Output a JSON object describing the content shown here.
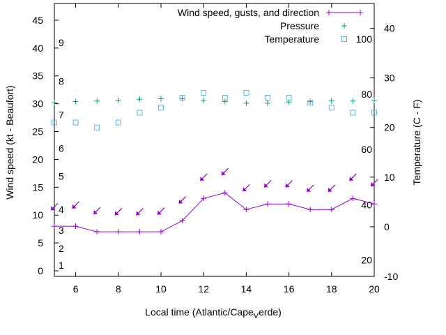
{
  "chart_data": {
    "type": "line",
    "xlabel": "Local time (Atlantic/Cape",
    "xlabel_sub": "V",
    "xlabel_tail": "erde)",
    "ylabel": "Wind speed (kt - Beaufort)",
    "y2label": "Temperature (C - F)",
    "xlim": [
      5,
      20
    ],
    "ylim": [
      -1,
      48
    ],
    "y2lim": [
      -10,
      45
    ],
    "x_ticks": [
      6,
      8,
      10,
      12,
      14,
      16,
      18,
      20
    ],
    "y_ticks": [
      0,
      5,
      10,
      15,
      20,
      25,
      30,
      35,
      40,
      45
    ],
    "y2_ticks": [
      -10,
      0,
      10,
      20,
      30,
      40
    ],
    "beaufort_labels": [
      {
        "label": "1",
        "y": 1
      },
      {
        "label": "2",
        "y": 4
      },
      {
        "label": "3",
        "y": 7.3
      },
      {
        "label": "4",
        "y": 11
      },
      {
        "label": "5",
        "y": 17
      },
      {
        "label": "6",
        "y": 22
      },
      {
        "label": "7",
        "y": 28
      },
      {
        "label": "8",
        "y": 34
      },
      {
        "label": "9",
        "y": 41
      }
    ],
    "fahrenheit_labels": [
      {
        "label": "20",
        "y2": -6.7
      },
      {
        "label": "40",
        "y2": 4.4
      },
      {
        "label": "60",
        "y2": 15.6
      },
      {
        "label": "80",
        "y2": 26.7
      },
      {
        "label": "100",
        "y2": 37.8
      }
    ],
    "legend": {
      "position": "top-right",
      "entries": [
        "Wind speed, gusts, and direction",
        "Pressure",
        "Temperature"
      ]
    },
    "colors": {
      "wind": "#9400d3",
      "pressure": "#009e73",
      "temperature": "#56b4e9",
      "axis": "#000000"
    },
    "series": [
      {
        "name": "Wind speed, gusts, and direction",
        "x": [
          5,
          6,
          7,
          8,
          9,
          10,
          11,
          12,
          13,
          14,
          15,
          16,
          17,
          18,
          19,
          20
        ],
        "values": [
          8,
          8,
          7,
          7,
          7,
          7,
          9,
          13,
          14,
          11,
          12,
          12,
          11,
          11,
          13,
          12
        ]
      },
      {
        "name": "Gust direction arrows",
        "x": [
          5,
          6,
          7,
          8,
          9,
          10,
          11,
          12,
          13,
          14,
          15,
          16,
          17,
          18,
          19,
          20
        ],
        "values": [
          11.5,
          11.8,
          10.8,
          10.6,
          10.6,
          10.7,
          12.7,
          16.8,
          17.8,
          14.9,
          15.6,
          15.6,
          14.8,
          14.8,
          16.8,
          15.8
        ]
      },
      {
        "name": "Pressure",
        "x": [
          5,
          6,
          7,
          8,
          9,
          10,
          11,
          12,
          13,
          14,
          15,
          16,
          17,
          18,
          19,
          20
        ],
        "values": [
          30.2,
          30.4,
          30.5,
          30.6,
          30.8,
          30.9,
          30.9,
          30.6,
          30.4,
          30.1,
          30.1,
          30.3,
          30.4,
          30.5,
          30.5,
          30.6
        ]
      },
      {
        "name": "Temperature",
        "axis": "y2",
        "x": [
          5,
          6,
          7,
          8,
          9,
          10,
          11,
          12,
          13,
          14,
          15,
          16,
          17,
          18,
          19,
          20
        ],
        "values": [
          21,
          21,
          20,
          21,
          23,
          24,
          26,
          27,
          26,
          27,
          26,
          26,
          25,
          24,
          23,
          23
        ]
      }
    ]
  }
}
